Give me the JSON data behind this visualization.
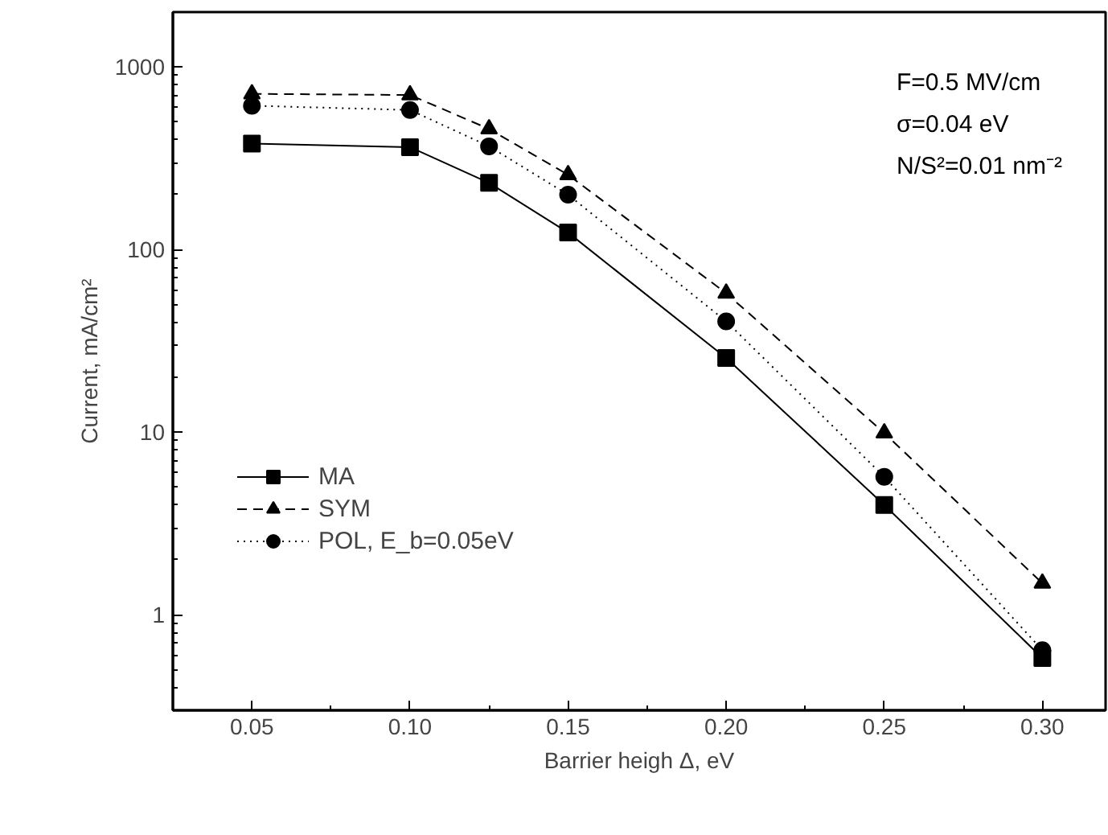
{
  "chart_data": {
    "type": "line",
    "xlabel": "Barrier heigh Δ, eV",
    "ylabel": "Current, mA/cm²",
    "x": [
      0.05,
      0.1,
      0.125,
      0.15,
      0.2,
      0.25,
      0.3
    ],
    "series": [
      {
        "name": "MA",
        "color": "#000000",
        "marker": "square",
        "line_style": "solid",
        "values": [
          381,
          364,
          232,
          124,
          25.5,
          4.0,
          0.58
        ]
      },
      {
        "name": "SYM",
        "color": "#000000",
        "marker": "triangle",
        "line_style": "dashed",
        "values": [
          713,
          703,
          458,
          257,
          57.7,
          9.9,
          1.49
        ]
      },
      {
        "name": "POL, E_b=0.05eV",
        "color": "#000000",
        "marker": "circle",
        "line_style": "dotted",
        "values": [
          614,
          582,
          368,
          200,
          40.5,
          5.7,
          0.64
        ]
      }
    ],
    "log": "y",
    "xlim": [
      0.025,
      0.32
    ],
    "ylim": [
      0.3,
      2000
    ],
    "xticks": [
      {
        "value": 0.05,
        "label": "0.05"
      },
      {
        "value": 0.1,
        "label": "0.10"
      },
      {
        "value": 0.15,
        "label": "0.15"
      },
      {
        "value": 0.2,
        "label": "0.20"
      },
      {
        "value": 0.25,
        "label": "0.25"
      },
      {
        "value": 0.3,
        "label": "0.30"
      }
    ],
    "yticks": [
      1,
      10,
      100,
      1000
    ],
    "grid": false,
    "legend": "bottom left",
    "annotations": [
      "F=0.5 MV/cm",
      "σ=0.04 eV",
      "N/S²=0.01 nm⁻²"
    ]
  }
}
